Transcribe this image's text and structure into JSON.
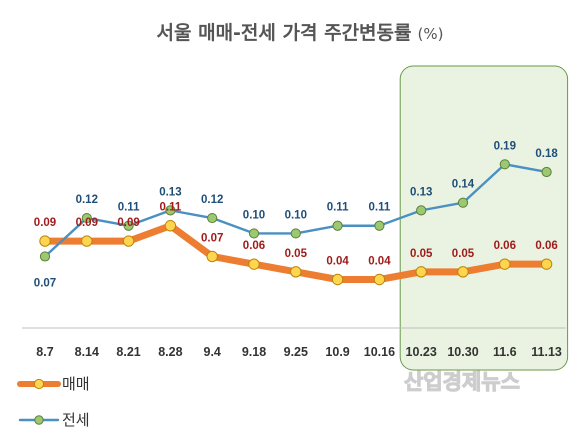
{
  "chart_data": {
    "type": "line",
    "title": "서울 매매-전세 가격 주간변동률",
    "title_unit": "(%)",
    "categories": [
      "8.7",
      "8.14",
      "8.21",
      "8.28",
      "9.4",
      "9.18",
      "9.25",
      "10.9",
      "10.16",
      "10.23",
      "10.30",
      "11.6",
      "11.13"
    ],
    "series": [
      {
        "name": "매매",
        "color": "#ed7d31",
        "marker_color": "#ffd54f",
        "values": [
          0.09,
          0.09,
          0.09,
          0.11,
          0.07,
          0.06,
          0.05,
          0.04,
          0.04,
          0.05,
          0.05,
          0.06,
          0.06
        ]
      },
      {
        "name": "전세",
        "color": "#4a90c2",
        "marker_color": "#9bc870",
        "values": [
          0.07,
          0.12,
          0.11,
          0.13,
          0.12,
          0.1,
          0.1,
          0.11,
          0.11,
          0.13,
          0.14,
          0.19,
          0.18
        ]
      }
    ],
    "legend_position": "bottom-left",
    "highlight": {
      "from_category": "10.23",
      "to_category": "11.13",
      "color": "#eaf3e1",
      "border": "#6a9a4a"
    },
    "grid": false
  },
  "watermark": "산업경제뉴스"
}
